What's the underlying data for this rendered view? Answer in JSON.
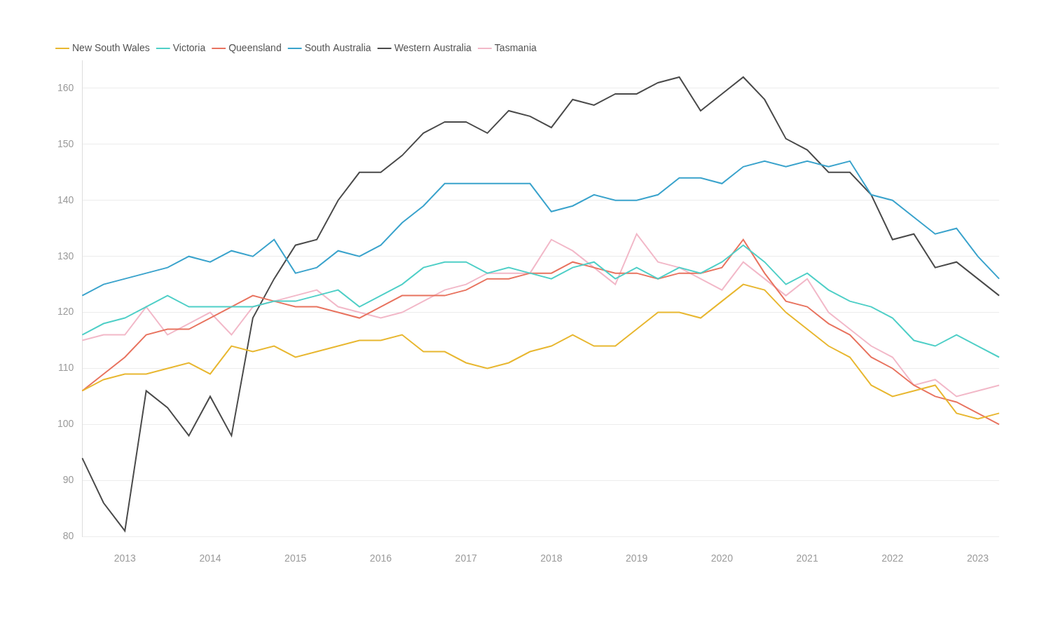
{
  "chart_data": {
    "type": "line",
    "categories": [
      null,
      null,
      "2013",
      null,
      null,
      null,
      "2014",
      null,
      null,
      null,
      "2015",
      null,
      null,
      null,
      "2016",
      null,
      null,
      null,
      "2017",
      null,
      null,
      null,
      "2018",
      null,
      null,
      null,
      "2019",
      null,
      null,
      null,
      "2020",
      null,
      null,
      null,
      "2021",
      null,
      null,
      null,
      "2022",
      null,
      null,
      null,
      "2023",
      null
    ],
    "series": [
      {
        "name": "New South Wales",
        "color": "#e8b730",
        "values": [
          106,
          108,
          109,
          109,
          110,
          111,
          109,
          114,
          113,
          114,
          112,
          113,
          114,
          115,
          115,
          116,
          113,
          113,
          111,
          110,
          111,
          113,
          114,
          116,
          114,
          114,
          117,
          120,
          120,
          119,
          122,
          125,
          124,
          120,
          117,
          114,
          112,
          107,
          105,
          106,
          107,
          102,
          101,
          102
        ]
      },
      {
        "name": "Victoria",
        "color": "#4fcfc7",
        "values": [
          116,
          118,
          119,
          121,
          123,
          121,
          121,
          121,
          121,
          122,
          122,
          123,
          124,
          121,
          123,
          125,
          128,
          129,
          129,
          127,
          128,
          127,
          126,
          128,
          129,
          126,
          128,
          126,
          128,
          127,
          129,
          132,
          129,
          125,
          127,
          124,
          122,
          121,
          119,
          115,
          114,
          116,
          114,
          112
        ]
      },
      {
        "name": "Queensland",
        "color": "#e8735f",
        "values": [
          106,
          109,
          112,
          116,
          117,
          117,
          119,
          121,
          123,
          122,
          121,
          121,
          120,
          119,
          121,
          123,
          123,
          123,
          124,
          126,
          126,
          127,
          127,
          129,
          128,
          127,
          127,
          126,
          127,
          127,
          128,
          133,
          127,
          122,
          121,
          118,
          116,
          112,
          110,
          107,
          105,
          104,
          102,
          100
        ]
      },
      {
        "name": "South Australia",
        "color": "#3aa3cc",
        "values": [
          123,
          125,
          126,
          127,
          128,
          130,
          129,
          131,
          130,
          133,
          127,
          128,
          131,
          130,
          132,
          136,
          139,
          143,
          143,
          143,
          143,
          143,
          138,
          139,
          141,
          140,
          140,
          141,
          144,
          144,
          143,
          146,
          147,
          146,
          147,
          146,
          147,
          141,
          140,
          137,
          134,
          135,
          130,
          126
        ]
      },
      {
        "name": "Western Australia",
        "color": "#4a4a4a",
        "values": [
          94,
          86,
          81,
          106,
          103,
          98,
          105,
          98,
          119,
          126,
          132,
          133,
          140,
          145,
          145,
          148,
          152,
          154,
          154,
          152,
          156,
          155,
          153,
          158,
          157,
          159,
          159,
          161,
          162,
          156,
          159,
          162,
          158,
          151,
          149,
          145,
          145,
          141,
          133,
          134,
          128,
          129,
          126,
          123
        ]
      },
      {
        "name": "Tasmania",
        "color": "#f2b8c8",
        "values": [
          115,
          116,
          116,
          121,
          116,
          118,
          120,
          116,
          121,
          122,
          123,
          124,
          121,
          120,
          119,
          120,
          122,
          124,
          125,
          127,
          127,
          127,
          133,
          131,
          128,
          125,
          134,
          129,
          128,
          126,
          124,
          129,
          126,
          123,
          126,
          120,
          117,
          114,
          112,
          107,
          108,
          105,
          106,
          107
        ]
      }
    ],
    "ylim": [
      80,
      165
    ],
    "yticks": [
      80,
      90,
      100,
      110,
      120,
      130,
      140,
      150,
      160
    ],
    "grid": true,
    "legend": "top-left"
  }
}
